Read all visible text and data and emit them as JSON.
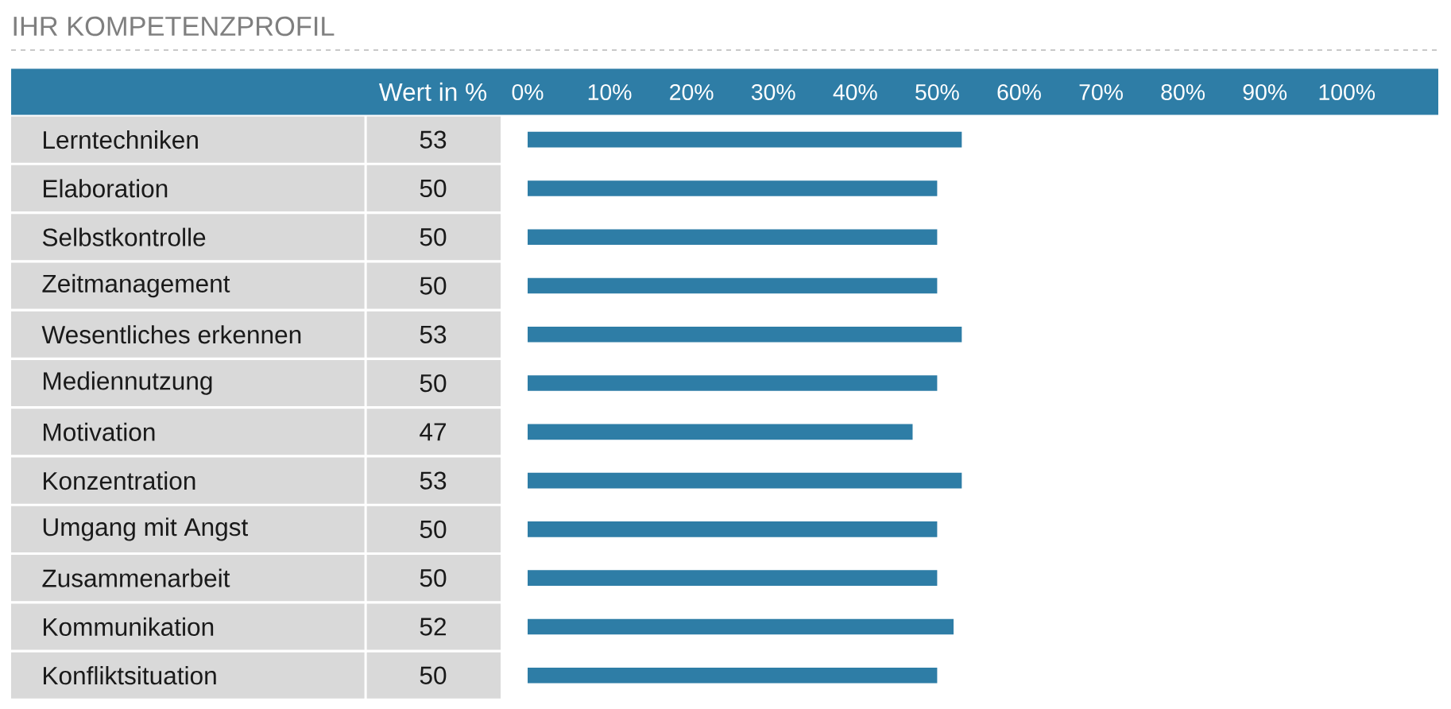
{
  "chart_data": {
    "type": "bar",
    "orientation": "horizontal",
    "title": "IHR KOMPETENZPROFIL",
    "annotations": [
      "Wert in %"
    ],
    "categories": [
      "Lerntechniken",
      "Elaboration",
      "Selbstkontrolle",
      "Zeitmanagement",
      "Wesentliches erkennen",
      "Mediennutzung",
      "Motivation",
      "Konzentration",
      "Umgang mit Angst",
      "Zusammenarbeit",
      "Kommunikation",
      "Konfliktsituation"
    ],
    "values": [
      53,
      50,
      50,
      50,
      53,
      50,
      47,
      53,
      50,
      50,
      52,
      50
    ],
    "color": "#2e7da6",
    "data_labels": true,
    "x2lim": [
      0,
      100
    ],
    "x2ticks": [
      {
        "value": 0,
        "label": "0%"
      },
      {
        "value": 10,
        "label": "10%"
      },
      {
        "value": 20,
        "label": "20%"
      },
      {
        "value": 30,
        "label": "30%"
      },
      {
        "value": 40,
        "label": "40%"
      },
      {
        "value": 50,
        "label": "50%"
      },
      {
        "value": 60,
        "label": "60%"
      },
      {
        "value": 70,
        "label": "70%"
      },
      {
        "value": 80,
        "label": "80%"
      },
      {
        "value": 90,
        "label": "90%"
      },
      {
        "value": 100,
        "label": "100%"
      }
    ]
  }
}
